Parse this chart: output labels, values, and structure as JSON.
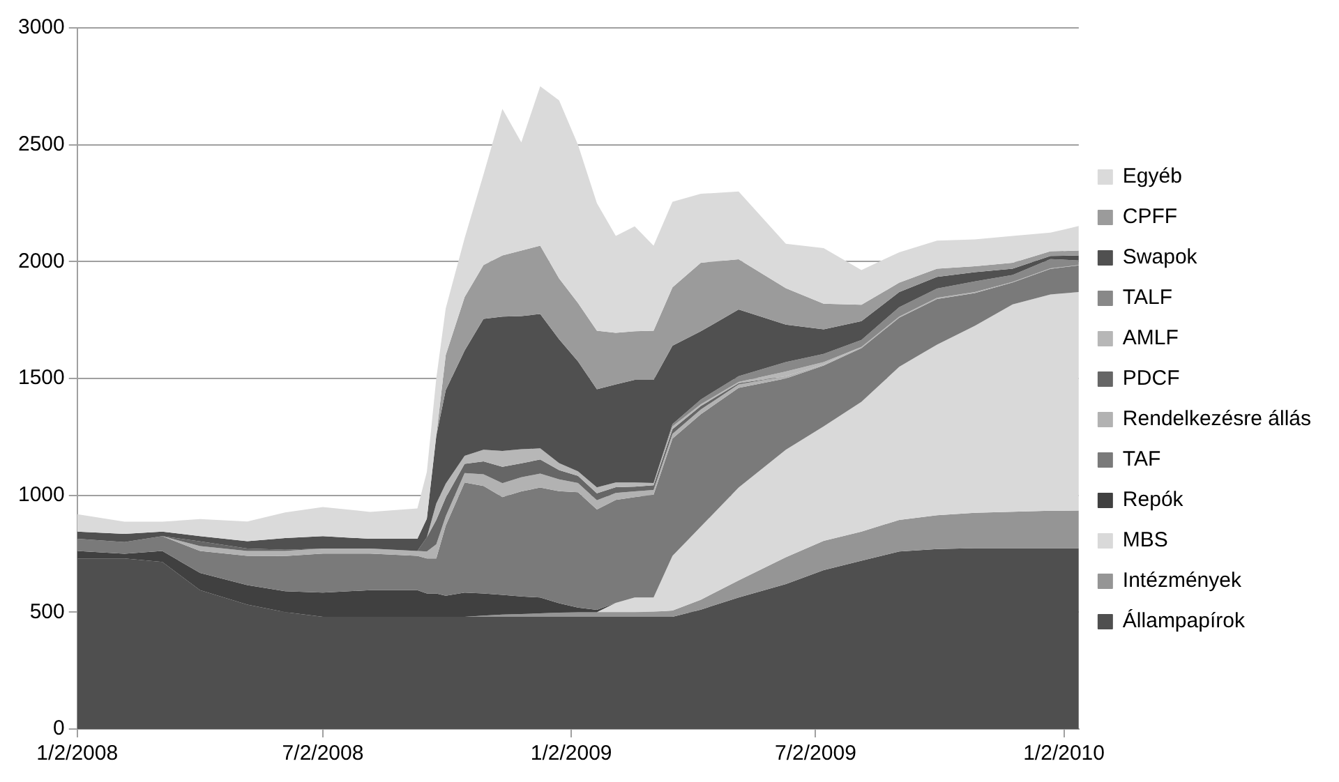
{
  "chart_data": {
    "type": "area",
    "stacked": true,
    "grid": "y",
    "legend": "right",
    "x": [
      "2008-01-02",
      "2008-02-06",
      "2008-03-05",
      "2008-04-02",
      "2008-05-07",
      "2008-06-04",
      "2008-07-02",
      "2008-08-06",
      "2008-09-10",
      "2008-09-17",
      "2008-09-24",
      "2008-10-01",
      "2008-10-15",
      "2008-10-29",
      "2008-11-12",
      "2008-11-26",
      "2008-12-10",
      "2008-12-24",
      "2009-01-07",
      "2009-01-21",
      "2009-02-04",
      "2009-02-18",
      "2009-03-04",
      "2009-03-18",
      "2009-04-08",
      "2009-05-06",
      "2009-06-10",
      "2009-07-08",
      "2009-08-05",
      "2009-09-02",
      "2009-09-30",
      "2009-10-28",
      "2009-11-25",
      "2009-12-23",
      "2010-01-13"
    ],
    "xlim": [
      "2008-01-02",
      "2010-01-13"
    ],
    "xticks": [
      {
        "value": "2008-01-02",
        "label": "1/2/2008"
      },
      {
        "value": "2008-07-02",
        "label": "7/2/2008"
      },
      {
        "value": "2009-01-02",
        "label": "1/2/2009"
      },
      {
        "value": "2009-07-02",
        "label": "7/2/2009"
      },
      {
        "value": "2010-01-02",
        "label": "1/2/2010"
      }
    ],
    "ylim": [
      0,
      3000
    ],
    "yticks": [
      0,
      500,
      1000,
      1500,
      2000,
      2500,
      3000
    ],
    "series": [
      {
        "name": "Állampapírok",
        "color": "#4f4f4f",
        "values": [
          730,
          730,
          715,
          594,
          532,
          500,
          480,
          480,
          480,
          480,
          480,
          480,
          480,
          480,
          480,
          480,
          480,
          480,
          480,
          480,
          480,
          480,
          480,
          480,
          511,
          563,
          620,
          680,
          720,
          760,
          770,
          774,
          774,
          774,
          774
        ]
      },
      {
        "name": "Intézmények",
        "color": "#959595",
        "values": [
          null,
          null,
          null,
          null,
          null,
          null,
          null,
          null,
          null,
          null,
          null,
          null,
          0,
          5,
          10,
          12,
          15,
          18,
          20,
          20,
          20,
          20,
          22,
          27,
          42,
          73,
          115,
          125,
          125,
          135,
          145,
          151,
          156,
          160,
          161
        ]
      },
      {
        "name": "MBS",
        "color": "#d9d9d9",
        "values": [
          null,
          null,
          null,
          null,
          null,
          null,
          null,
          null,
          null,
          null,
          null,
          null,
          null,
          null,
          null,
          null,
          null,
          null,
          null,
          0,
          40,
          63,
          61,
          234,
          313,
          397,
          460,
          490,
          555,
          655,
          730,
          800,
          887,
          925,
          935
        ]
      },
      {
        "name": "Repók",
        "color": "#404040",
        "values": [
          32,
          20,
          47,
          74,
          84,
          90,
          104,
          114,
          114,
          100,
          100,
          90,
          104,
          95,
          84,
          75,
          68,
          40,
          20,
          10,
          0,
          null,
          null,
          null,
          null,
          null,
          null,
          null,
          null,
          null,
          null,
          null,
          null,
          null,
          null
        ]
      },
      {
        "name": "TAF",
        "color": "#7a7a7a",
        "values": [
          52,
          50,
          63,
          94,
          125,
          150,
          167,
          157,
          147,
          150,
          150,
          300,
          471,
          460,
          418,
          450,
          470,
          480,
          493,
          429,
          440,
          429,
          440,
          502,
          481,
          427,
          305,
          260,
          230,
          210,
          195,
          140,
          94,
          110,
          114
        ]
      },
      {
        "name": "Rendelkezésre állás",
        "color": "#b2b2b2",
        "values": [
          null,
          null,
          0,
          21,
          21,
          22,
          21,
          21,
          21,
          30,
          60,
          40,
          40,
          50,
          60,
          60,
          60,
          50,
          40,
          40,
          30,
          25,
          20,
          20,
          20,
          15,
          10,
          5,
          5,
          5,
          5,
          5,
          2,
          2,
          1
        ]
      },
      {
        "name": "PDCF",
        "color": "#666666",
        "values": [
          null,
          null,
          0,
          20,
          10,
          5,
          0,
          0,
          0,
          60,
          105,
          80,
          40,
          55,
          70,
          60,
          60,
          40,
          30,
          30,
          25,
          20,
          20,
          20,
          15,
          5,
          0,
          null,
          null,
          null,
          null,
          null,
          null,
          null,
          null
        ]
      },
      {
        "name": "AMLF",
        "color": "#b7b7b7",
        "values": [
          null,
          null,
          null,
          null,
          null,
          null,
          null,
          null,
          null,
          0,
          70,
          60,
          34,
          50,
          68,
          60,
          48,
          30,
          20,
          25,
          20,
          18,
          10,
          12,
          8,
          5,
          20,
          10,
          0,
          null,
          null,
          null,
          null,
          null,
          null
        ]
      },
      {
        "name": "TALF",
        "color": "#888888",
        "values": [
          null,
          null,
          null,
          null,
          null,
          null,
          null,
          null,
          null,
          null,
          null,
          null,
          null,
          null,
          null,
          null,
          null,
          null,
          null,
          null,
          null,
          null,
          0,
          10,
          20,
          25,
          40,
          35,
          30,
          40,
          40,
          45,
          30,
          40,
          20
        ]
      },
      {
        "name": "Swapok",
        "color": "#505050",
        "values": [
          31,
          35,
          20,
          22,
          32,
          50,
          53,
          42,
          52,
          80,
          290,
          400,
          450,
          560,
          575,
          570,
          575,
          530,
          470,
          420,
          420,
          439,
          441,
          335,
          292,
          285,
          160,
          105,
          80,
          65,
          50,
          40,
          27,
          13,
          21
        ]
      },
      {
        "name": "CPFF",
        "color": "#9b9b9b",
        "values": [
          null,
          null,
          null,
          null,
          null,
          null,
          null,
          null,
          null,
          null,
          0,
          150,
          229,
          230,
          261,
          280,
          292,
          260,
          250,
          250,
          220,
          208,
          210,
          250,
          293,
          215,
          156,
          110,
          70,
          40,
          35,
          25,
          25,
          20,
          21
        ]
      },
      {
        "name": "Egyéb",
        "color": "#dadada",
        "values": [
          74,
          52,
          42,
          73,
          84,
          110,
          125,
          115,
          130,
          200,
          245,
          200,
          252,
          388,
          627,
          463,
          682,
          762,
          677,
          546,
          415,
          449,
          364,
          366,
          295,
          290,
          190,
          238,
          149,
          130,
          120,
          115,
          115,
          80,
          105
        ]
      }
    ]
  }
}
